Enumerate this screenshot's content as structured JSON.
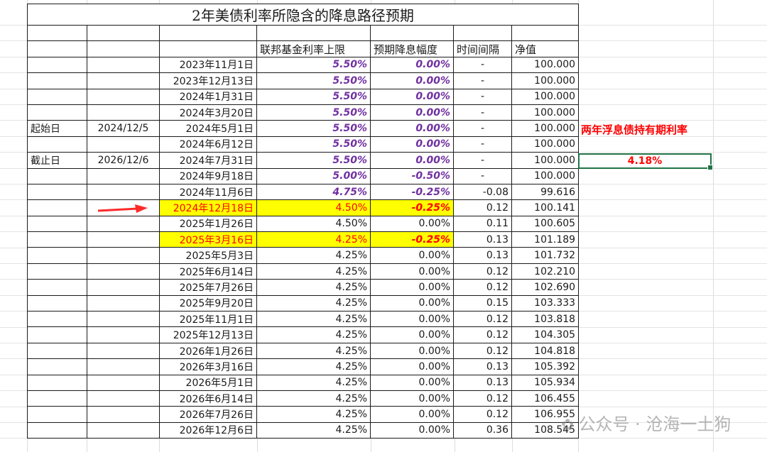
{
  "title": "2年美债利率所隐含的降息路径预期",
  "headers": {
    "fed_rate": "联邦基金利率上限",
    "cut": "预期降息幅度",
    "interval": "时间间隔",
    "nav": "净值"
  },
  "start": {
    "label": "起始日",
    "value": "2024/12/5"
  },
  "end": {
    "label": "截止日",
    "value": "2026/12/6"
  },
  "side": {
    "label": "两年浮息债持有期利率",
    "value": "4.18%"
  },
  "watermark": "公众号 · 沧海一土狗",
  "rows": [
    {
      "date": "2023年11月1日",
      "rate": "5.50%",
      "cut": "0.00%",
      "interval": "-",
      "nav": "100.000",
      "style": "purple"
    },
    {
      "date": "2023年12月13日",
      "rate": "5.50%",
      "cut": "0.00%",
      "interval": "-",
      "nav": "100.000",
      "style": "purple"
    },
    {
      "date": "2024年1月31日",
      "rate": "5.50%",
      "cut": "0.00%",
      "interval": "-",
      "nav": "100.000",
      "style": "purple"
    },
    {
      "date": "2024年3月20日",
      "rate": "5.50%",
      "cut": "0.00%",
      "interval": "-",
      "nav": "100.000",
      "style": "purple"
    },
    {
      "date": "2024年5月1日",
      "rate": "5.50%",
      "cut": "0.00%",
      "interval": "-",
      "nav": "100.000",
      "style": "purple"
    },
    {
      "date": "2024年6月12日",
      "rate": "5.50%",
      "cut": "0.00%",
      "interval": "-",
      "nav": "100.000",
      "style": "purple"
    },
    {
      "date": "2024年7月31日",
      "rate": "5.50%",
      "cut": "0.00%",
      "interval": "-",
      "nav": "100.000",
      "style": "purple"
    },
    {
      "date": "2024年9月18日",
      "rate": "5.00%",
      "cut": "-0.50%",
      "interval": "-",
      "nav": "100.000",
      "style": "purple"
    },
    {
      "date": "2024年11月6日",
      "rate": "4.75%",
      "cut": "-0.25%",
      "interval": "-0.08",
      "nav": "99.616",
      "style": "purple"
    },
    {
      "date": "2024年12月18日",
      "rate": "4.50%",
      "cut": "-0.25%",
      "interval": "0.12",
      "nav": "100.141",
      "style": "highlight"
    },
    {
      "date": "2025年1月26日",
      "rate": "4.50%",
      "cut": "0.00%",
      "interval": "0.11",
      "nav": "100.605",
      "style": "normal"
    },
    {
      "date": "2025年3月16日",
      "rate": "4.25%",
      "cut": "-0.25%",
      "interval": "0.13",
      "nav": "101.189",
      "style": "highlight"
    },
    {
      "date": "2025年5月3日",
      "rate": "4.25%",
      "cut": "0.00%",
      "interval": "0.13",
      "nav": "101.732",
      "style": "normal"
    },
    {
      "date": "2025年6月14日",
      "rate": "4.25%",
      "cut": "0.00%",
      "interval": "0.12",
      "nav": "102.210",
      "style": "normal"
    },
    {
      "date": "2025年7月26日",
      "rate": "4.25%",
      "cut": "0.00%",
      "interval": "0.12",
      "nav": "102.690",
      "style": "normal"
    },
    {
      "date": "2025年9月20日",
      "rate": "4.25%",
      "cut": "0.00%",
      "interval": "0.15",
      "nav": "103.333",
      "style": "normal"
    },
    {
      "date": "2025年11月1日",
      "rate": "4.25%",
      "cut": "0.00%",
      "interval": "0.12",
      "nav": "103.818",
      "style": "normal"
    },
    {
      "date": "2025年12月13日",
      "rate": "4.25%",
      "cut": "0.00%",
      "interval": "0.12",
      "nav": "104.305",
      "style": "normal"
    },
    {
      "date": "2026年1月26日",
      "rate": "4.25%",
      "cut": "0.00%",
      "interval": "0.12",
      "nav": "104.818",
      "style": "normal"
    },
    {
      "date": "2026年3月16日",
      "rate": "4.25%",
      "cut": "0.00%",
      "interval": "0.13",
      "nav": "105.392",
      "style": "normal"
    },
    {
      "date": "2026年5月1日",
      "rate": "4.25%",
      "cut": "0.00%",
      "interval": "0.13",
      "nav": "105.934",
      "style": "normal"
    },
    {
      "date": "2026年6月14日",
      "rate": "4.25%",
      "cut": "0.00%",
      "interval": "0.12",
      "nav": "106.455",
      "style": "normal"
    },
    {
      "date": "2026年7月26日",
      "rate": "4.25%",
      "cut": "0.00%",
      "interval": "0.12",
      "nav": "106.955",
      "style": "normal"
    },
    {
      "date": "2026年12月6日",
      "rate": "4.25%",
      "cut": "0.00%",
      "interval": "0.36",
      "nav": "108.545",
      "style": "normal"
    }
  ],
  "colors": {
    "purple": "#7030a0",
    "highlight_bg": "#ffff00",
    "highlight_text": "#ff0000",
    "selection": "#217346",
    "arrow": "#ff0000"
  }
}
